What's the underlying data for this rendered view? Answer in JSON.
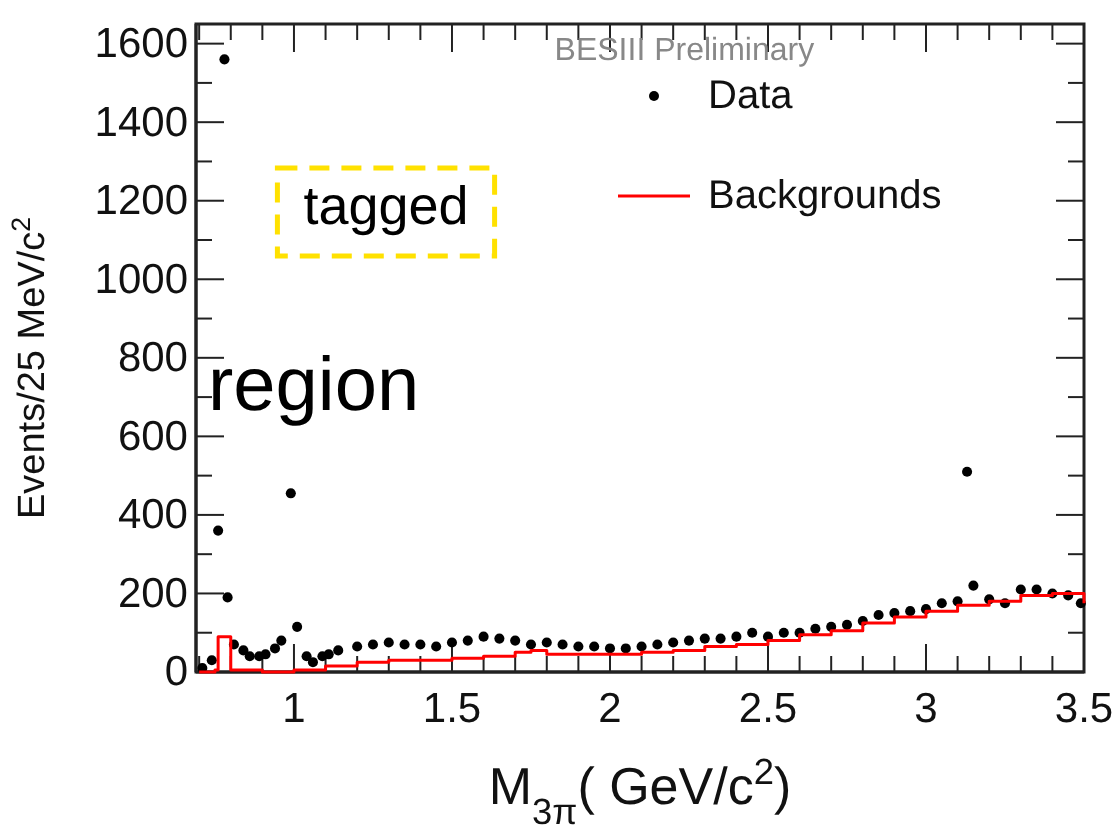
{
  "chart_data": {
    "type": "scatter",
    "xlabel": "M$_{3π}$( GeV/c$^{2}$)",
    "ylabel": "Events/25 MeV/c$^{2}$",
    "annotations": [
      "BESIII Preliminary",
      "tagged",
      "region"
    ],
    "xlim": [
      0.69,
      3.5
    ],
    "xticks": [
      1,
      1.5,
      2,
      2.5,
      3,
      3.5,
      {
        "value": 0.7,
        "label": null
      },
      {
        "value": 0.8,
        "label": null
      },
      {
        "value": 0.9,
        "label": null
      },
      {
        "value": 1.1,
        "label": null
      },
      {
        "value": 1.2,
        "label": null
      },
      {
        "value": 1.3,
        "label": null
      },
      {
        "value": 1.4,
        "label": null
      },
      {
        "value": 1.6,
        "label": null
      },
      {
        "value": 1.7,
        "label": null
      },
      {
        "value": 1.8,
        "label": null
      },
      {
        "value": 1.9,
        "label": null
      },
      {
        "value": 2.1,
        "label": null
      },
      {
        "value": 2.2,
        "label": null
      },
      {
        "value": 2.3,
        "label": null
      },
      {
        "value": 2.4,
        "label": null
      },
      {
        "value": 2.6,
        "label": null
      },
      {
        "value": 2.7,
        "label": null
      },
      {
        "value": 2.8,
        "label": null
      },
      {
        "value": 2.9,
        "label": null
      },
      {
        "value": 3.1,
        "label": null
      },
      {
        "value": 3.2,
        "label": null
      },
      {
        "value": 3.3,
        "label": null
      },
      {
        "value": 3.4,
        "label": null
      }
    ],
    "ylim": [
      0,
      1650
    ],
    "yticks": [
      0,
      200,
      400,
      600,
      800,
      1000,
      1200,
      1400,
      1600,
      {
        "value": 100,
        "label": null
      },
      {
        "value": 300,
        "label": null
      },
      {
        "value": 500,
        "label": null
      },
      {
        "value": 700,
        "label": null
      },
      {
        "value": 900,
        "label": null
      },
      {
        "value": 1100,
        "label": null
      },
      {
        "value": 1300,
        "label": null
      },
      {
        "value": 1500,
        "label": null
      }
    ],
    "legend": "top right",
    "grid": false,
    "series": [
      {
        "name": "Data",
        "marker": "circle",
        "color": "#000000",
        "x": [
          0.71,
          0.74,
          0.76,
          0.78,
          0.79,
          0.81,
          0.84,
          0.86,
          0.89,
          0.91,
          0.94,
          0.96,
          0.99,
          1.01,
          1.04,
          1.06,
          1.09,
          1.11,
          1.14,
          1.2,
          1.25,
          1.3,
          1.35,
          1.4,
          1.45,
          1.5,
          1.55,
          1.6,
          1.65,
          1.7,
          1.75,
          1.8,
          1.85,
          1.9,
          1.95,
          2.0,
          2.05,
          2.1,
          2.15,
          2.2,
          2.25,
          2.3,
          2.35,
          2.4,
          2.45,
          2.5,
          2.55,
          2.6,
          2.65,
          2.7,
          2.75,
          2.8,
          2.85,
          2.9,
          2.95,
          3.0,
          3.05,
          3.1,
          3.13,
          3.15,
          3.2,
          3.25,
          3.3,
          3.35,
          3.4,
          3.45,
          3.49
        ],
        "values": [
          10,
          30,
          360,
          1560,
          190,
          70,
          55,
          40,
          40,
          45,
          60,
          80,
          455,
          115,
          40,
          25,
          40,
          45,
          55,
          65,
          70,
          75,
          70,
          70,
          65,
          75,
          80,
          90,
          85,
          80,
          70,
          75,
          70,
          65,
          65,
          60,
          60,
          65,
          70,
          75,
          80,
          85,
          85,
          90,
          100,
          90,
          100,
          100,
          110,
          115,
          120,
          130,
          145,
          150,
          155,
          160,
          175,
          180,
          510,
          220,
          185,
          175,
          210,
          210,
          200,
          195,
          175
        ]
      },
      {
        "name": "Backgrounds",
        "type": "step",
        "color": "#ff0000",
        "x": [
          0.7,
          0.75,
          0.76,
          0.8,
          0.9,
          1.0,
          1.1,
          1.2,
          1.3,
          1.4,
          1.5,
          1.6,
          1.7,
          1.75,
          1.8,
          1.9,
          2.0,
          2.1,
          2.2,
          2.3,
          2.4,
          2.5,
          2.6,
          2.7,
          2.8,
          2.9,
          3.0,
          3.1,
          3.2,
          3.3,
          3.4,
          3.5
        ],
        "values": [
          0,
          5,
          90,
          5,
          0,
          5,
          15,
          25,
          30,
          30,
          35,
          40,
          50,
          55,
          45,
          45,
          45,
          50,
          55,
          65,
          70,
          80,
          95,
          105,
          125,
          140,
          155,
          170,
          180,
          195,
          200,
          175
        ]
      }
    ]
  }
}
